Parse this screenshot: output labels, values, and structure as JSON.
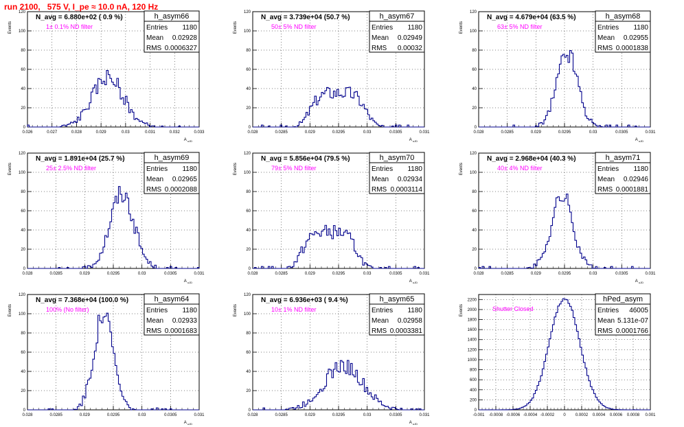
{
  "page_title": "run 2100,   575 V, I_pe ≈ 10.0 nA, 120 Hz",
  "colors": {
    "title": "#ff0000",
    "annotation": "#ff00ff",
    "histogram": "#00008b"
  },
  "chart_data": [
    {
      "type": "histogram",
      "grid": true,
      "legend_position": "top-right",
      "name": "h_asym66",
      "entries": "1180",
      "mean": "0.02928",
      "rms": "0.0006327",
      "navg": "N_avg = 6.880e+02 ( 0.9 %)",
      "annotation": "1± 0.1% ND filter",
      "xlabel": "A uJD",
      "ylabel": "Events",
      "xlim": [
        0.026,
        0.033
      ],
      "xticks": [
        0.026,
        0.027,
        0.028,
        0.029,
        0.03,
        0.031,
        0.032,
        0.033
      ],
      "xtick_labels": [
        "0.026",
        "0.027",
        "0.028",
        "0.029",
        "0.03",
        "0.031",
        "0.032",
        "0.033"
      ],
      "ylim": [
        0,
        120
      ],
      "yticks": [
        0,
        20,
        40,
        60,
        80,
        100,
        120
      ],
      "mu": 0.02928,
      "sigma": 0.0006327,
      "peak": 52,
      "nbins": 100,
      "hist_range": [
        0.026,
        0.033
      ],
      "seed": 66
    },
    {
      "type": "histogram",
      "grid": true,
      "legend_position": "top-right",
      "name": "h_asym67",
      "entries": "1180",
      "mean": "0.02949",
      "rms": "0.00032",
      "navg": "N_avg = 3.739e+04 (50.7 %)",
      "annotation": "50± 5% ND filter",
      "xlabel": "A uJD",
      "ylabel": "Events",
      "xlim": [
        0.028,
        0.031
      ],
      "xticks": [
        0.028,
        0.0285,
        0.029,
        0.0295,
        0.03,
        0.0305,
        0.031
      ],
      "xtick_labels": [
        "0.028",
        "0.0285",
        "0.029",
        "0.0295",
        "0.03",
        "0.0305",
        "0.031"
      ],
      "ylim": [
        0,
        120
      ],
      "yticks": [
        0,
        20,
        40,
        60,
        80,
        100,
        120
      ],
      "mu": 0.02949,
      "sigma": 0.00032,
      "peak": 44,
      "shape": "flat",
      "nbins": 100,
      "hist_range": [
        0.028,
        0.031
      ],
      "seed": 67
    },
    {
      "type": "histogram",
      "grid": true,
      "legend_position": "top-right",
      "name": "h_asym68",
      "entries": "1180",
      "mean": "0.02955",
      "rms": "0.0001838",
      "navg": "N_avg = 4.679e+04 (63.5 %)",
      "annotation": "63± 5% ND filter",
      "xlabel": "A uJD",
      "ylabel": "Events",
      "xlim": [
        0.028,
        0.031
      ],
      "xticks": [
        0.028,
        0.0285,
        0.029,
        0.0295,
        0.03,
        0.0305,
        0.031
      ],
      "xtick_labels": [
        "0.028",
        "0.0285",
        "0.029",
        "0.0295",
        "0.03",
        "0.0305",
        "0.031"
      ],
      "ylim": [
        0,
        120
      ],
      "yticks": [
        0,
        20,
        40,
        60,
        80,
        100,
        120
      ],
      "mu": 0.02955,
      "sigma": 0.0001838,
      "peak": 78,
      "nbins": 100,
      "hist_range": [
        0.028,
        0.031
      ],
      "seed": 68
    },
    {
      "type": "histogram",
      "grid": true,
      "legend_position": "top-right",
      "name": "h_asym69",
      "entries": "1180",
      "mean": "0.02965",
      "rms": "0.0002088",
      "navg": "N_avg = 1.891e+04 (25.7 %)",
      "annotation": "25± 2.5% ND filter",
      "xlabel": "A uJD",
      "ylabel": "Events",
      "xlim": [
        0.028,
        0.031
      ],
      "xticks": [
        0.028,
        0.0285,
        0.029,
        0.0295,
        0.03,
        0.0305,
        0.031
      ],
      "xtick_labels": [
        "0.028",
        "0.0285",
        "0.029",
        "0.0295",
        "0.03",
        "0.0305",
        "0.031"
      ],
      "ylim": [
        0,
        120
      ],
      "yticks": [
        0,
        20,
        40,
        60,
        80,
        100,
        120
      ],
      "mu": 0.02965,
      "sigma": 0.0002088,
      "peak": 78,
      "nbins": 100,
      "hist_range": [
        0.028,
        0.031
      ],
      "seed": 69
    },
    {
      "type": "histogram",
      "grid": true,
      "legend_position": "top-right",
      "name": "h_asym70",
      "entries": "1180",
      "mean": "0.02934",
      "rms": "0.0003114",
      "navg": "N_avg = 5.856e+04 (79.5 %)",
      "annotation": "79± 5% ND filter",
      "xlabel": "A uJD",
      "ylabel": "Events",
      "xlim": [
        0.028,
        0.031
      ],
      "xticks": [
        0.028,
        0.0285,
        0.029,
        0.0295,
        0.03,
        0.0305,
        0.031
      ],
      "xtick_labels": [
        "0.028",
        "0.0285",
        "0.029",
        "0.0295",
        "0.03",
        "0.0305",
        "0.031"
      ],
      "ylim": [
        0,
        120
      ],
      "yticks": [
        0,
        20,
        40,
        60,
        80,
        100,
        120
      ],
      "mu": 0.02934,
      "sigma": 0.0003114,
      "peak": 46,
      "shape": "flat",
      "nbins": 100,
      "hist_range": [
        0.028,
        0.031
      ],
      "seed": 70
    },
    {
      "type": "histogram",
      "grid": true,
      "legend_position": "top-right",
      "name": "h_asym71",
      "entries": "1180",
      "mean": "0.02946",
      "rms": "0.0001881",
      "navg": "N_avg = 2.968e+04 (40.3 %)",
      "annotation": "40± 4% ND filter",
      "xlabel": "A uJD",
      "ylabel": "Events",
      "xlim": [
        0.028,
        0.031
      ],
      "xticks": [
        0.028,
        0.0285,
        0.029,
        0.0295,
        0.03,
        0.0305,
        0.031
      ],
      "xtick_labels": [
        "0.028",
        "0.0285",
        "0.029",
        "0.0295",
        "0.03",
        "0.0305",
        "0.031"
      ],
      "ylim": [
        0,
        120
      ],
      "yticks": [
        0,
        20,
        40,
        60,
        80,
        100,
        120
      ],
      "mu": 0.02946,
      "sigma": 0.0001881,
      "peak": 76,
      "nbins": 100,
      "hist_range": [
        0.028,
        0.031
      ],
      "seed": 71
    },
    {
      "type": "histogram",
      "grid": true,
      "legend_position": "top-right",
      "name": "h_asym64",
      "entries": "1180",
      "mean": "0.02933",
      "rms": "0.0001683",
      "navg": "N_avg = 7.368e+04 (100.0 %)",
      "annotation": "100% (No filter)",
      "xlabel": "A uJD",
      "ylabel": "Events",
      "xlim": [
        0.028,
        0.031
      ],
      "xticks": [
        0.028,
        0.0285,
        0.029,
        0.0295,
        0.03,
        0.0305,
        0.031
      ],
      "xtick_labels": [
        "0.028",
        "0.0285",
        "0.029",
        "0.0295",
        "0.03",
        "0.0305",
        "0.031"
      ],
      "ylim": [
        0,
        120
      ],
      "yticks": [
        0,
        20,
        40,
        60,
        80,
        100,
        120
      ],
      "mu": 0.02933,
      "sigma": 0.0001683,
      "peak": 100,
      "nbins": 100,
      "hist_range": [
        0.028,
        0.031
      ],
      "seed": 64
    },
    {
      "type": "histogram",
      "grid": true,
      "legend_position": "top-right",
      "name": "h_asym65",
      "entries": "1180",
      "mean": "0.02958",
      "rms": "0.0003381",
      "navg": "N_avg = 6.936e+03 ( 9.4 %)",
      "annotation": "10± 1% ND filter",
      "xlabel": "A uJD",
      "ylabel": "Events",
      "xlim": [
        0.028,
        0.031
      ],
      "xticks": [
        0.028,
        0.0285,
        0.029,
        0.0295,
        0.03,
        0.0305,
        0.031
      ],
      "xtick_labels": [
        "0.028",
        "0.0285",
        "0.029",
        "0.0295",
        "0.03",
        "0.0305",
        "0.031"
      ],
      "ylim": [
        0,
        120
      ],
      "yticks": [
        0,
        20,
        40,
        60,
        80,
        100,
        120
      ],
      "mu": 0.02958,
      "sigma": 0.0003381,
      "peak": 46,
      "nbins": 100,
      "hist_range": [
        0.028,
        0.031
      ],
      "seed": 65
    },
    {
      "type": "histogram",
      "grid": true,
      "legend_position": "top-right",
      "name": "hPed_asym",
      "entries": "46005",
      "mean": "5.131e-07",
      "rms": "0.0001766",
      "navg": "",
      "annotation": "Shutter Closed",
      "xlabel": "",
      "ylabel": "Events",
      "xlim": [
        -0.001,
        0.001
      ],
      "xticks": [
        -0.001,
        -0.0008,
        -0.0006,
        -0.0004,
        -0.0002,
        0,
        0.0002,
        0.0004,
        0.0006,
        0.0008,
        0.001
      ],
      "xtick_labels": [
        "-0.001",
        "-0.0008",
        "-0.0006",
        "-0.0004",
        "-0.0002",
        "0",
        "0.0002",
        "0.0004",
        "0.0006",
        "0.0008",
        "0.001"
      ],
      "ylim": [
        0,
        2300
      ],
      "yticks": [
        0,
        200,
        400,
        600,
        800,
        1000,
        1200,
        1400,
        1600,
        1800,
        2000,
        2200
      ],
      "mu": 0.0,
      "sigma": 0.0001766,
      "peak": 2220,
      "nbins": 100,
      "hist_range": [
        -0.001,
        0.001
      ],
      "seed": 1
    }
  ]
}
